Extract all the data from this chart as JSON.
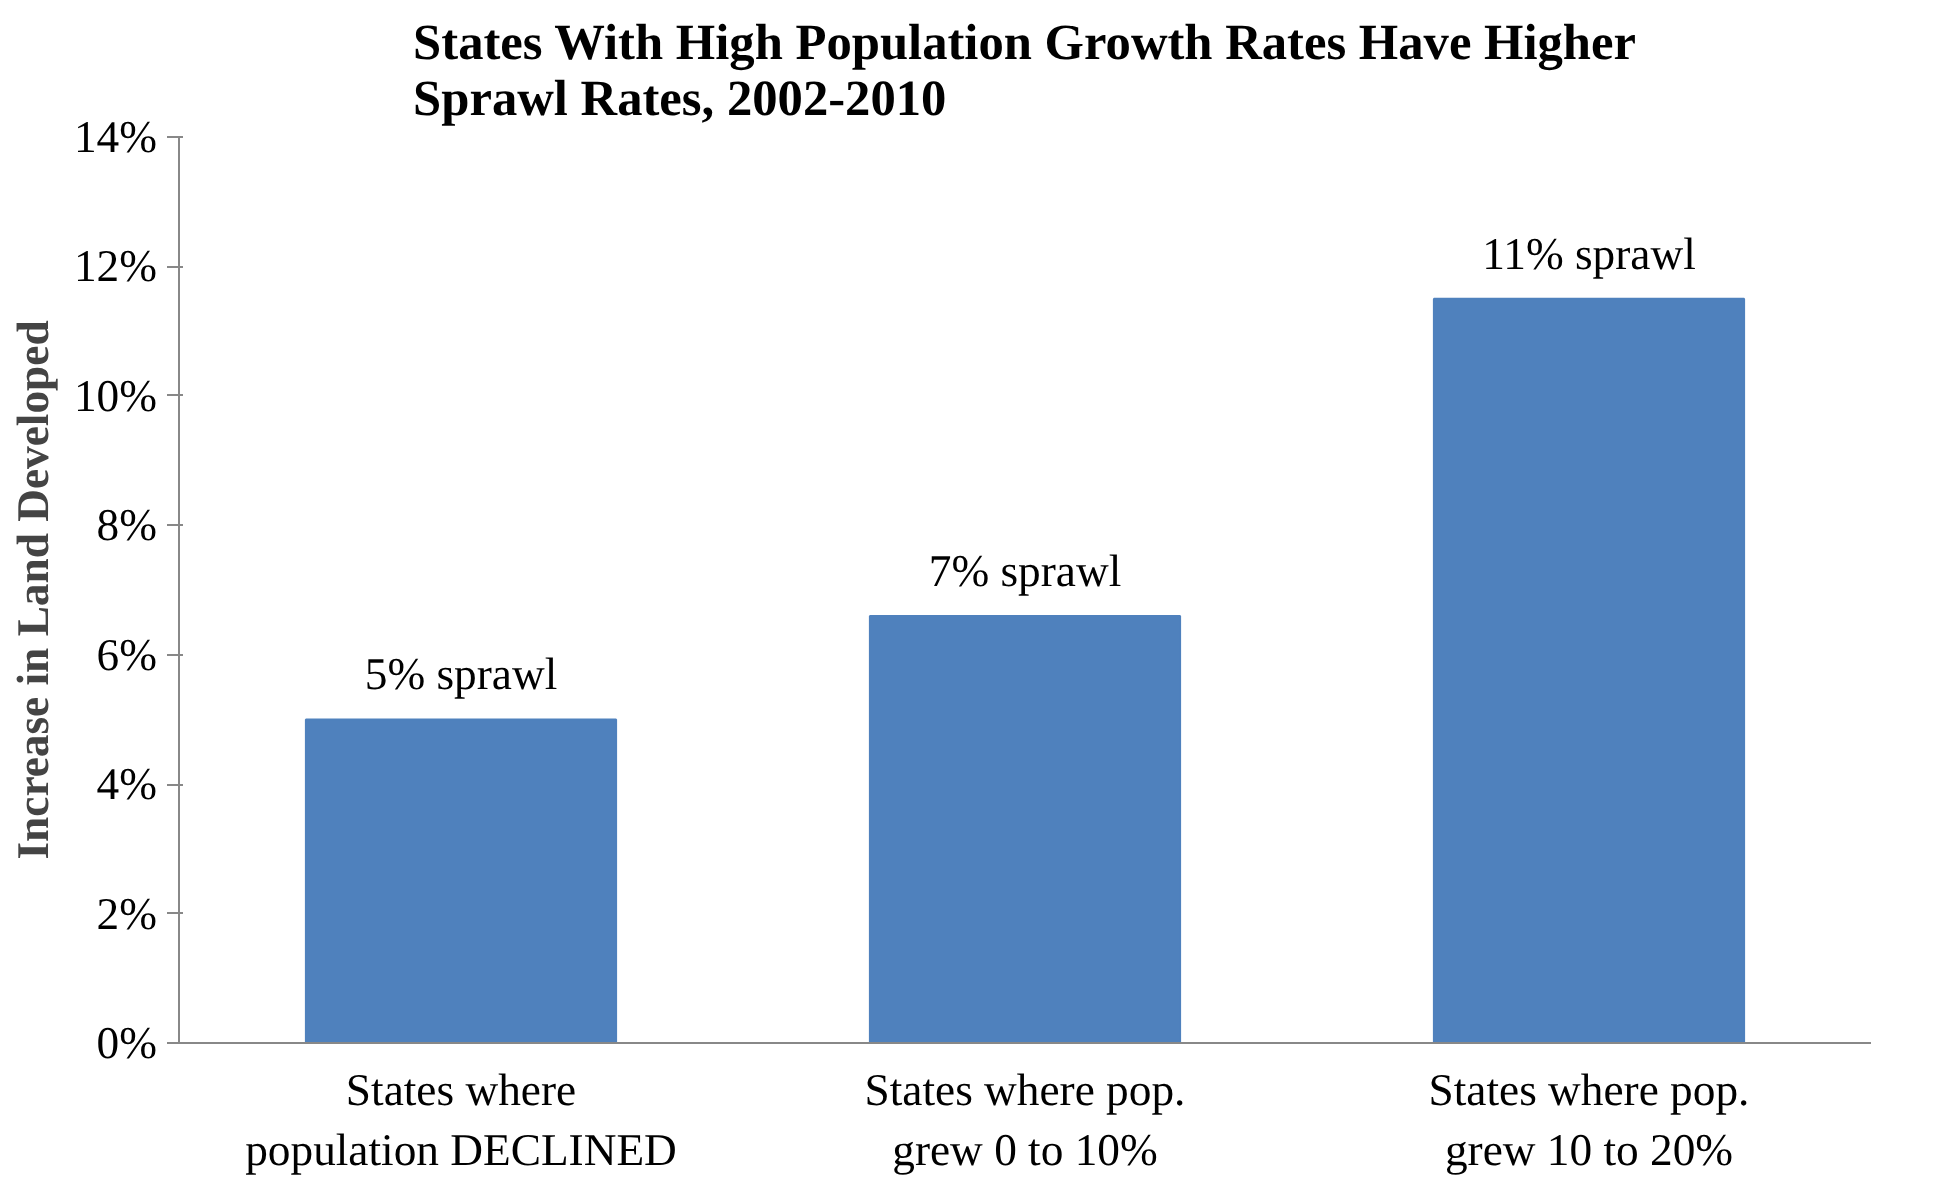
{
  "chart_data": {
    "type": "bar",
    "title": "States With High Population Growth Rates Have Higher Sprawl Rates, 2002-2010",
    "ylabel": "Increase in Land Developed",
    "categories": [
      "States where population DECLINED",
      "States where pop. grew 0 to 10%",
      "States where pop. grew 10 to 20%"
    ],
    "values": [
      5.0,
      6.6,
      11.5
    ],
    "value_labels": [
      "5% sprawl",
      "7% sprawl",
      "11% sprawl"
    ],
    "color": "#4f81bd",
    "ylim": [
      0,
      14
    ],
    "yticks": [
      {
        "value": 0,
        "label": "0%"
      },
      {
        "value": 2,
        "label": "2%"
      },
      {
        "value": 4,
        "label": "4%"
      },
      {
        "value": 6,
        "label": "6%"
      },
      {
        "value": 8,
        "label": "8%"
      },
      {
        "value": 10,
        "label": "10%"
      },
      {
        "value": 12,
        "label": "12%"
      },
      {
        "value": 14,
        "label": "14%"
      }
    ],
    "grid": false
  }
}
